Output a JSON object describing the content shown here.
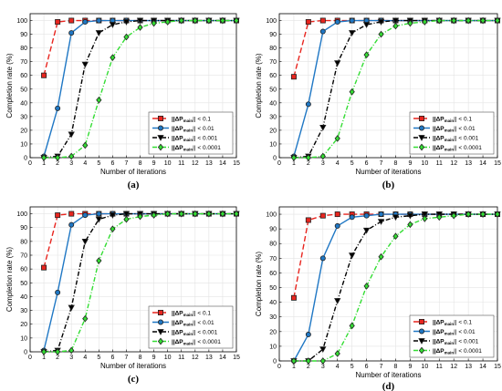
{
  "chart_data": [
    {
      "type": "line",
      "panel_label": "(a)",
      "xlabel": "Number of iterations",
      "ylabel": "Completion rate (%)",
      "xlim": [
        0,
        15
      ],
      "ylim": [
        0,
        105
      ],
      "xticks": [
        0,
        1,
        2,
        3,
        4,
        5,
        6,
        7,
        8,
        9,
        10,
        11,
        12,
        13,
        14,
        15
      ],
      "yticks": [
        0,
        10,
        20,
        30,
        40,
        50,
        60,
        70,
        80,
        90,
        100
      ],
      "grid": true,
      "legend_position": "lower-right",
      "x": [
        1,
        2,
        3,
        4,
        5,
        6,
        7,
        8,
        9,
        10,
        11,
        12,
        13,
        14,
        15
      ],
      "series": [
        {
          "name": "||ΔP_main|| < 0.1",
          "legend_main": "||ΔP",
          "legend_sub": "main",
          "legend_tail": "|| < 0.1",
          "color": "#e8251f",
          "dash": "6,3",
          "marker": "square",
          "values": [
            60,
            99,
            100,
            100,
            100,
            100,
            100,
            100,
            100,
            100,
            100,
            100,
            100,
            100,
            100
          ]
        },
        {
          "name": "||ΔP_main|| < 0.01",
          "legend_main": "||ΔP",
          "legend_sub": "main",
          "legend_tail": "|| < 0.01",
          "color": "#1f77c4",
          "dash": "",
          "marker": "circle",
          "values": [
            1,
            36,
            91,
            99,
            100,
            100,
            100,
            100,
            100,
            100,
            100,
            100,
            100,
            100,
            100
          ]
        },
        {
          "name": "||ΔP_main|| < 0.001",
          "legend_main": "||ΔP",
          "legend_sub": "main",
          "legend_tail": "|| < 0.001",
          "color": "#000000",
          "dash": "5,2,1,2",
          "marker": "triangle-down",
          "values": [
            0,
            1,
            17,
            68,
            91,
            97,
            99,
            100,
            100,
            100,
            100,
            100,
            100,
            100,
            100
          ]
        },
        {
          "name": "||ΔP_main|| < 0.0001",
          "legend_main": "||ΔP",
          "legend_sub": "main",
          "legend_tail": "|| < 0.0001",
          "color": "#33dd33",
          "dash": "5,2,1,2",
          "marker": "diamond",
          "values": [
            0,
            0,
            1,
            9,
            42,
            73,
            88,
            95,
            98,
            99,
            100,
            100,
            100,
            100,
            100
          ]
        }
      ]
    },
    {
      "type": "line",
      "panel_label": "(b)",
      "xlabel": "Number of iterations",
      "ylabel": "Completion rate (%)",
      "xlim": [
        0,
        15
      ],
      "ylim": [
        0,
        105
      ],
      "xticks": [
        0,
        1,
        2,
        3,
        4,
        5,
        6,
        7,
        8,
        9,
        10,
        11,
        12,
        13,
        14,
        15
      ],
      "yticks": [
        0,
        10,
        20,
        30,
        40,
        50,
        60,
        70,
        80,
        90,
        100
      ],
      "grid": true,
      "legend_position": "lower-right",
      "x": [
        1,
        2,
        3,
        4,
        5,
        6,
        7,
        8,
        9,
        10,
        11,
        12,
        13,
        14,
        15
      ],
      "series": [
        {
          "name": "||ΔP_main|| < 0.1",
          "legend_main": "||ΔP",
          "legend_sub": "main",
          "legend_tail": "|| < 0.1",
          "color": "#e8251f",
          "dash": "6,3",
          "marker": "square",
          "values": [
            59,
            99,
            100,
            100,
            100,
            100,
            100,
            100,
            100,
            100,
            100,
            100,
            100,
            100,
            100
          ]
        },
        {
          "name": "||ΔP_main|| < 0.01",
          "legend_main": "||ΔP",
          "legend_sub": "main",
          "legend_tail": "|| < 0.01",
          "color": "#1f77c4",
          "dash": "",
          "marker": "circle",
          "values": [
            1,
            39,
            92,
            99,
            100,
            100,
            100,
            100,
            100,
            100,
            100,
            100,
            100,
            100,
            100
          ]
        },
        {
          "name": "||ΔP_main|| < 0.001",
          "legend_main": "||ΔP",
          "legend_sub": "main",
          "legend_tail": "|| < 0.001",
          "color": "#000000",
          "dash": "5,2,1,2",
          "marker": "triangle-down",
          "values": [
            0,
            1,
            22,
            69,
            91,
            97,
            99,
            100,
            100,
            100,
            100,
            100,
            100,
            100,
            100
          ]
        },
        {
          "name": "||ΔP_main|| < 0.0001",
          "legend_main": "||ΔP",
          "legend_sub": "main",
          "legend_tail": "|| < 0.0001",
          "color": "#33dd33",
          "dash": "5,2,1,2",
          "marker": "diamond",
          "values": [
            0,
            0,
            1,
            14,
            48,
            75,
            90,
            96,
            98,
            99,
            100,
            100,
            100,
            100,
            100
          ]
        }
      ]
    },
    {
      "type": "line",
      "panel_label": "(c)",
      "xlabel": "Number of iterations",
      "ylabel": "Completion rate (%)",
      "xlim": [
        0,
        15
      ],
      "ylim": [
        0,
        105
      ],
      "xticks": [
        0,
        1,
        2,
        3,
        4,
        5,
        6,
        7,
        8,
        9,
        10,
        11,
        12,
        13,
        14,
        15
      ],
      "yticks": [
        0,
        10,
        20,
        30,
        40,
        50,
        60,
        70,
        80,
        90,
        100
      ],
      "grid": true,
      "legend_position": "lower-right",
      "x": [
        1,
        2,
        3,
        4,
        5,
        6,
        7,
        8,
        9,
        10,
        11,
        12,
        13,
        14,
        15
      ],
      "series": [
        {
          "name": "||ΔP_main|| < 0.1",
          "legend_main": "||ΔP",
          "legend_sub": "main",
          "legend_tail": "|| < 0.1",
          "color": "#e8251f",
          "dash": "6,3",
          "marker": "square",
          "values": [
            61,
            99,
            100,
            100,
            100,
            100,
            100,
            100,
            100,
            100,
            100,
            100,
            100,
            100,
            100
          ]
        },
        {
          "name": "||ΔP_main|| < 0.01",
          "legend_main": "||ΔP",
          "legend_sub": "main",
          "legend_tail": "|| < 0.01",
          "color": "#1f77c4",
          "dash": "",
          "marker": "circle",
          "values": [
            1,
            43,
            92,
            99,
            100,
            100,
            100,
            100,
            100,
            100,
            100,
            100,
            100,
            100,
            100
          ]
        },
        {
          "name": "||ΔP_main|| < 0.001",
          "legend_main": "||ΔP",
          "legend_sub": "main",
          "legend_tail": "|| < 0.001",
          "color": "#000000",
          "dash": "5,2,1,2",
          "marker": "triangle-down",
          "values": [
            0,
            1,
            32,
            80,
            96,
            99,
            100,
            100,
            100,
            100,
            100,
            100,
            100,
            100,
            100
          ]
        },
        {
          "name": "||ΔP_main|| < 0.0001",
          "legend_main": "||ΔP",
          "legend_sub": "main",
          "legend_tail": "|| < 0.0001",
          "color": "#33dd33",
          "dash": "5,2,1,2",
          "marker": "diamond",
          "values": [
            0,
            0,
            1,
            24,
            66,
            89,
            96,
            98,
            99,
            100,
            100,
            100,
            100,
            100,
            100
          ]
        }
      ]
    },
    {
      "type": "line",
      "panel_label": "(d)",
      "xlabel": "Number of iterations",
      "ylabel": "Completion rate (%)",
      "xlim": [
        0,
        15
      ],
      "ylim": [
        0,
        105
      ],
      "xticks": [
        0,
        1,
        2,
        3,
        4,
        5,
        6,
        7,
        8,
        9,
        10,
        11,
        12,
        13,
        14,
        15
      ],
      "yticks": [
        0,
        10,
        20,
        30,
        40,
        50,
        60,
        70,
        80,
        90,
        100
      ],
      "grid": true,
      "legend_position": "lower-right",
      "x": [
        1,
        2,
        3,
        4,
        5,
        6,
        7,
        8,
        9,
        10,
        11,
        12,
        13,
        14,
        15
      ],
      "series": [
        {
          "name": "||ΔP_main|| < 0.1",
          "legend_main": "||ΔP",
          "legend_sub": "main",
          "legend_tail": "|| < 0.1",
          "color": "#e8251f",
          "dash": "6,3",
          "marker": "square",
          "values": [
            43,
            96,
            99,
            100,
            100,
            100,
            100,
            100,
            100,
            100,
            100,
            100,
            100,
            100,
            100
          ]
        },
        {
          "name": "||ΔP_main|| < 0.01",
          "legend_main": "||ΔP",
          "legend_sub": "main",
          "legend_tail": "|| < 0.01",
          "color": "#1f77c4",
          "dash": "",
          "marker": "circle",
          "values": [
            0,
            18,
            70,
            92,
            98,
            99,
            100,
            100,
            100,
            100,
            100,
            100,
            100,
            100,
            100
          ]
        },
        {
          "name": "||ΔP_main|| < 0.001",
          "legend_main": "||ΔP",
          "legend_sub": "main",
          "legend_tail": "|| < 0.001",
          "color": "#000000",
          "dash": "5,2,1,2",
          "marker": "triangle-down",
          "values": [
            0,
            0,
            8,
            41,
            72,
            89,
            95,
            98,
            99,
            100,
            100,
            100,
            100,
            100,
            100
          ]
        },
        {
          "name": "||ΔP_main|| < 0.0001",
          "legend_main": "||ΔP",
          "legend_sub": "main",
          "legend_tail": "|| < 0.0001",
          "color": "#33dd33",
          "dash": "5,2,1,2",
          "marker": "diamond",
          "values": [
            0,
            0,
            0,
            5,
            24,
            51,
            71,
            85,
            93,
            97,
            98,
            99,
            100,
            100,
            100
          ]
        }
      ]
    }
  ]
}
